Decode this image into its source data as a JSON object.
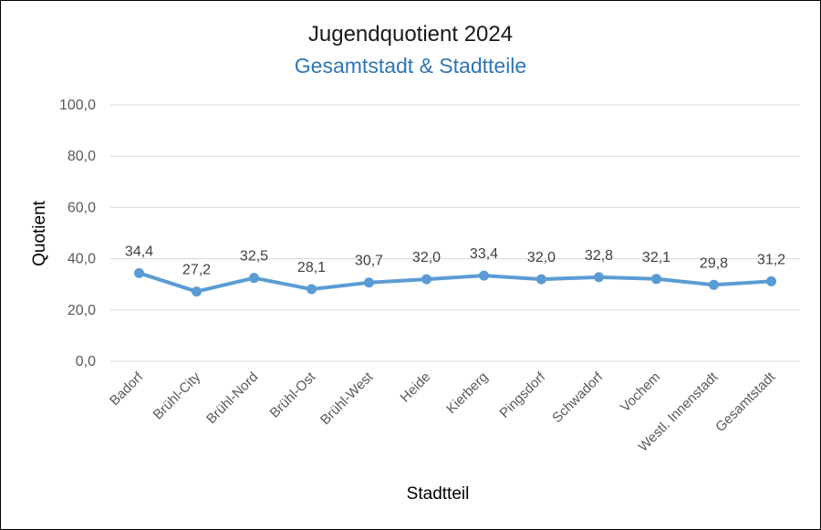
{
  "chart_data": {
    "type": "line",
    "title": "Jugendquotient 2024",
    "subtitle": "Gesamtstadt & Stadtteile",
    "xlabel": "Stadtteil",
    "ylabel": "Quotient",
    "ylim": [
      0,
      100
    ],
    "yticks": [
      0,
      20,
      40,
      60,
      80,
      100
    ],
    "ytick_labels": [
      "0,0",
      "20,0",
      "40,0",
      "60,0",
      "80,0",
      "100,0"
    ],
    "grid": true,
    "categories": [
      "Badorf",
      "Brühl-City",
      "Brühl-Nord",
      "Brühl-Ost",
      "Brühl-West",
      "Heide",
      "Kierberg",
      "Pingsdorf",
      "Schwadorf",
      "Vochem",
      "Westl. Innenstadt",
      "Gesamtstadt"
    ],
    "series": [
      {
        "name": "Jugendquotient",
        "values": [
          34.4,
          27.2,
          32.5,
          28.1,
          30.7,
          32.0,
          33.4,
          32.0,
          32.8,
          32.1,
          29.8,
          31.2
        ],
        "labels": [
          "34,4",
          "27,2",
          "32,5",
          "28,1",
          "30,7",
          "32,0",
          "33,4",
          "32,0",
          "32,8",
          "32,1",
          "29,8",
          "31,2"
        ]
      }
    ],
    "highlight_index": 11
  },
  "colors": {
    "line": "#5b9bd5",
    "accent": "#2e75b6",
    "grid": "#d9d9d9",
    "tick_text": "#595959",
    "label_text": "#404040"
  }
}
